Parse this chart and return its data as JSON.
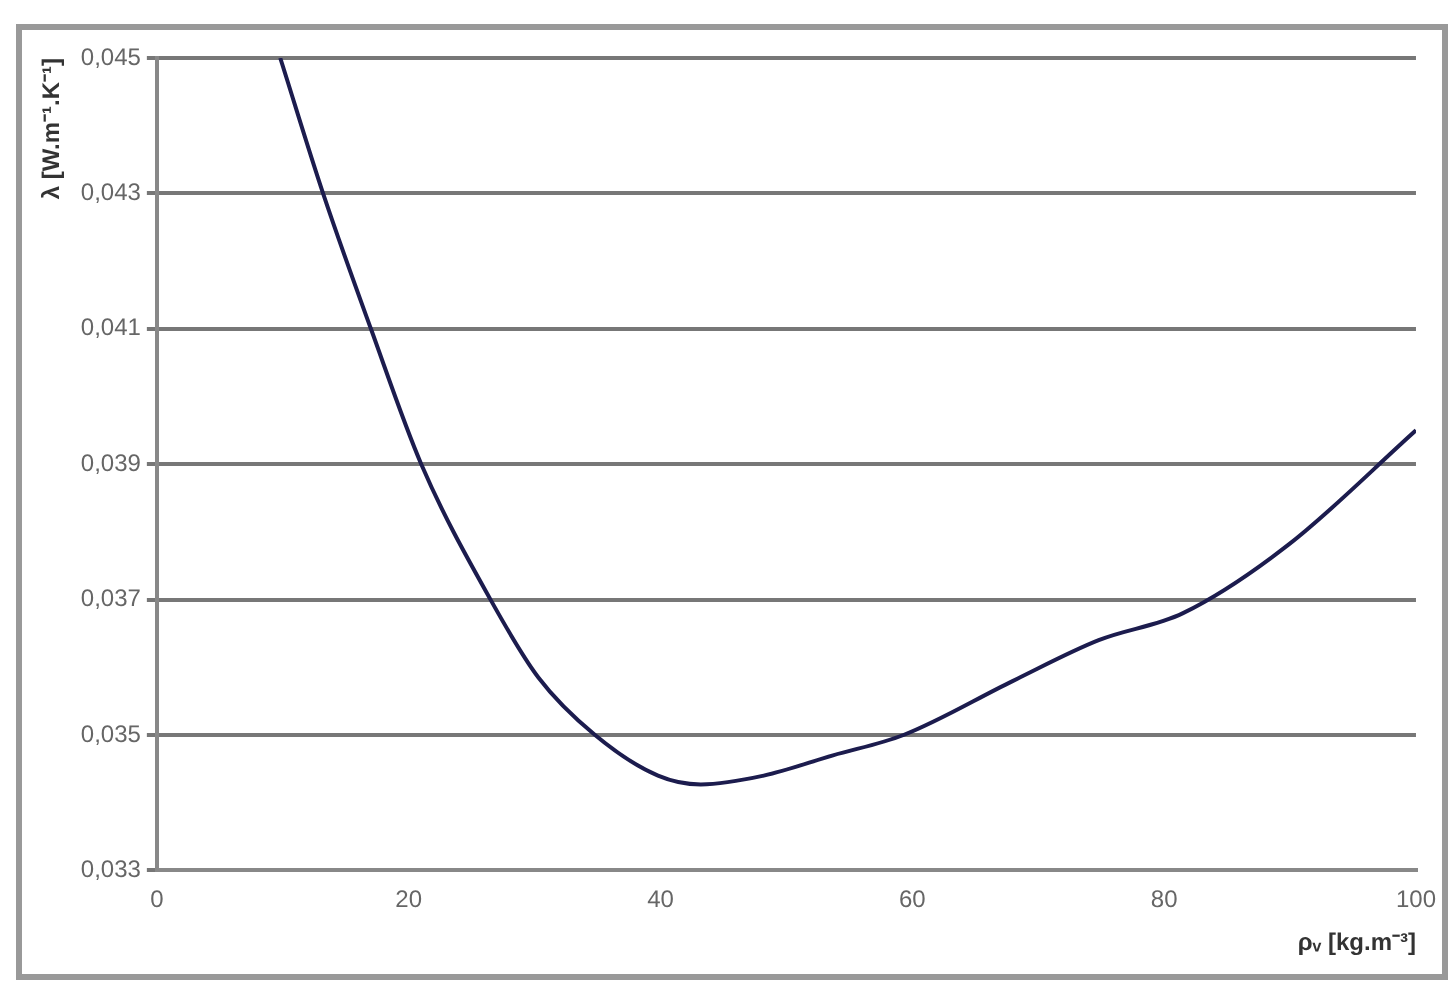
{
  "chart_data": {
    "type": "line",
    "xlabel": "ρᵥ [kg.m⁻³]",
    "ylabel": "λ [W.m⁻¹.K⁻¹]",
    "x": [
      9.8,
      13.2,
      17,
      21,
      26.5,
      30.3,
      34.8,
      39.8,
      43.2,
      48.2,
      53.7,
      59.3,
      68,
      74.8,
      81.5,
      89.8,
      100
    ],
    "series": [
      {
        "color": "#1c1c4e",
        "values": [
          0.045,
          0.043,
          0.041,
          0.039,
          0.037,
          0.03585,
          0.035,
          0.0344,
          0.03427,
          0.0344,
          0.0347,
          0.035,
          0.0358,
          0.0364,
          0.0368,
          0.0378,
          0.0395
        ]
      }
    ],
    "xlim": [
      0,
      100
    ],
    "xticks": [
      0,
      20,
      40,
      60,
      80,
      100
    ],
    "ylim": [
      0.033,
      0.045
    ],
    "yticks": [
      {
        "value": 0.033,
        "label": "0,033"
      },
      {
        "value": 0.035,
        "label": "0,035"
      },
      {
        "value": 0.037,
        "label": "0,037"
      },
      {
        "value": 0.039,
        "label": "0,039"
      },
      {
        "value": 0.041,
        "label": "0,041"
      },
      {
        "value": 0.043,
        "label": "0,043"
      },
      {
        "value": 0.045,
        "label": "0,045"
      }
    ],
    "grid": "y",
    "legend": false,
    "marker": "none",
    "line_style": "solid"
  }
}
